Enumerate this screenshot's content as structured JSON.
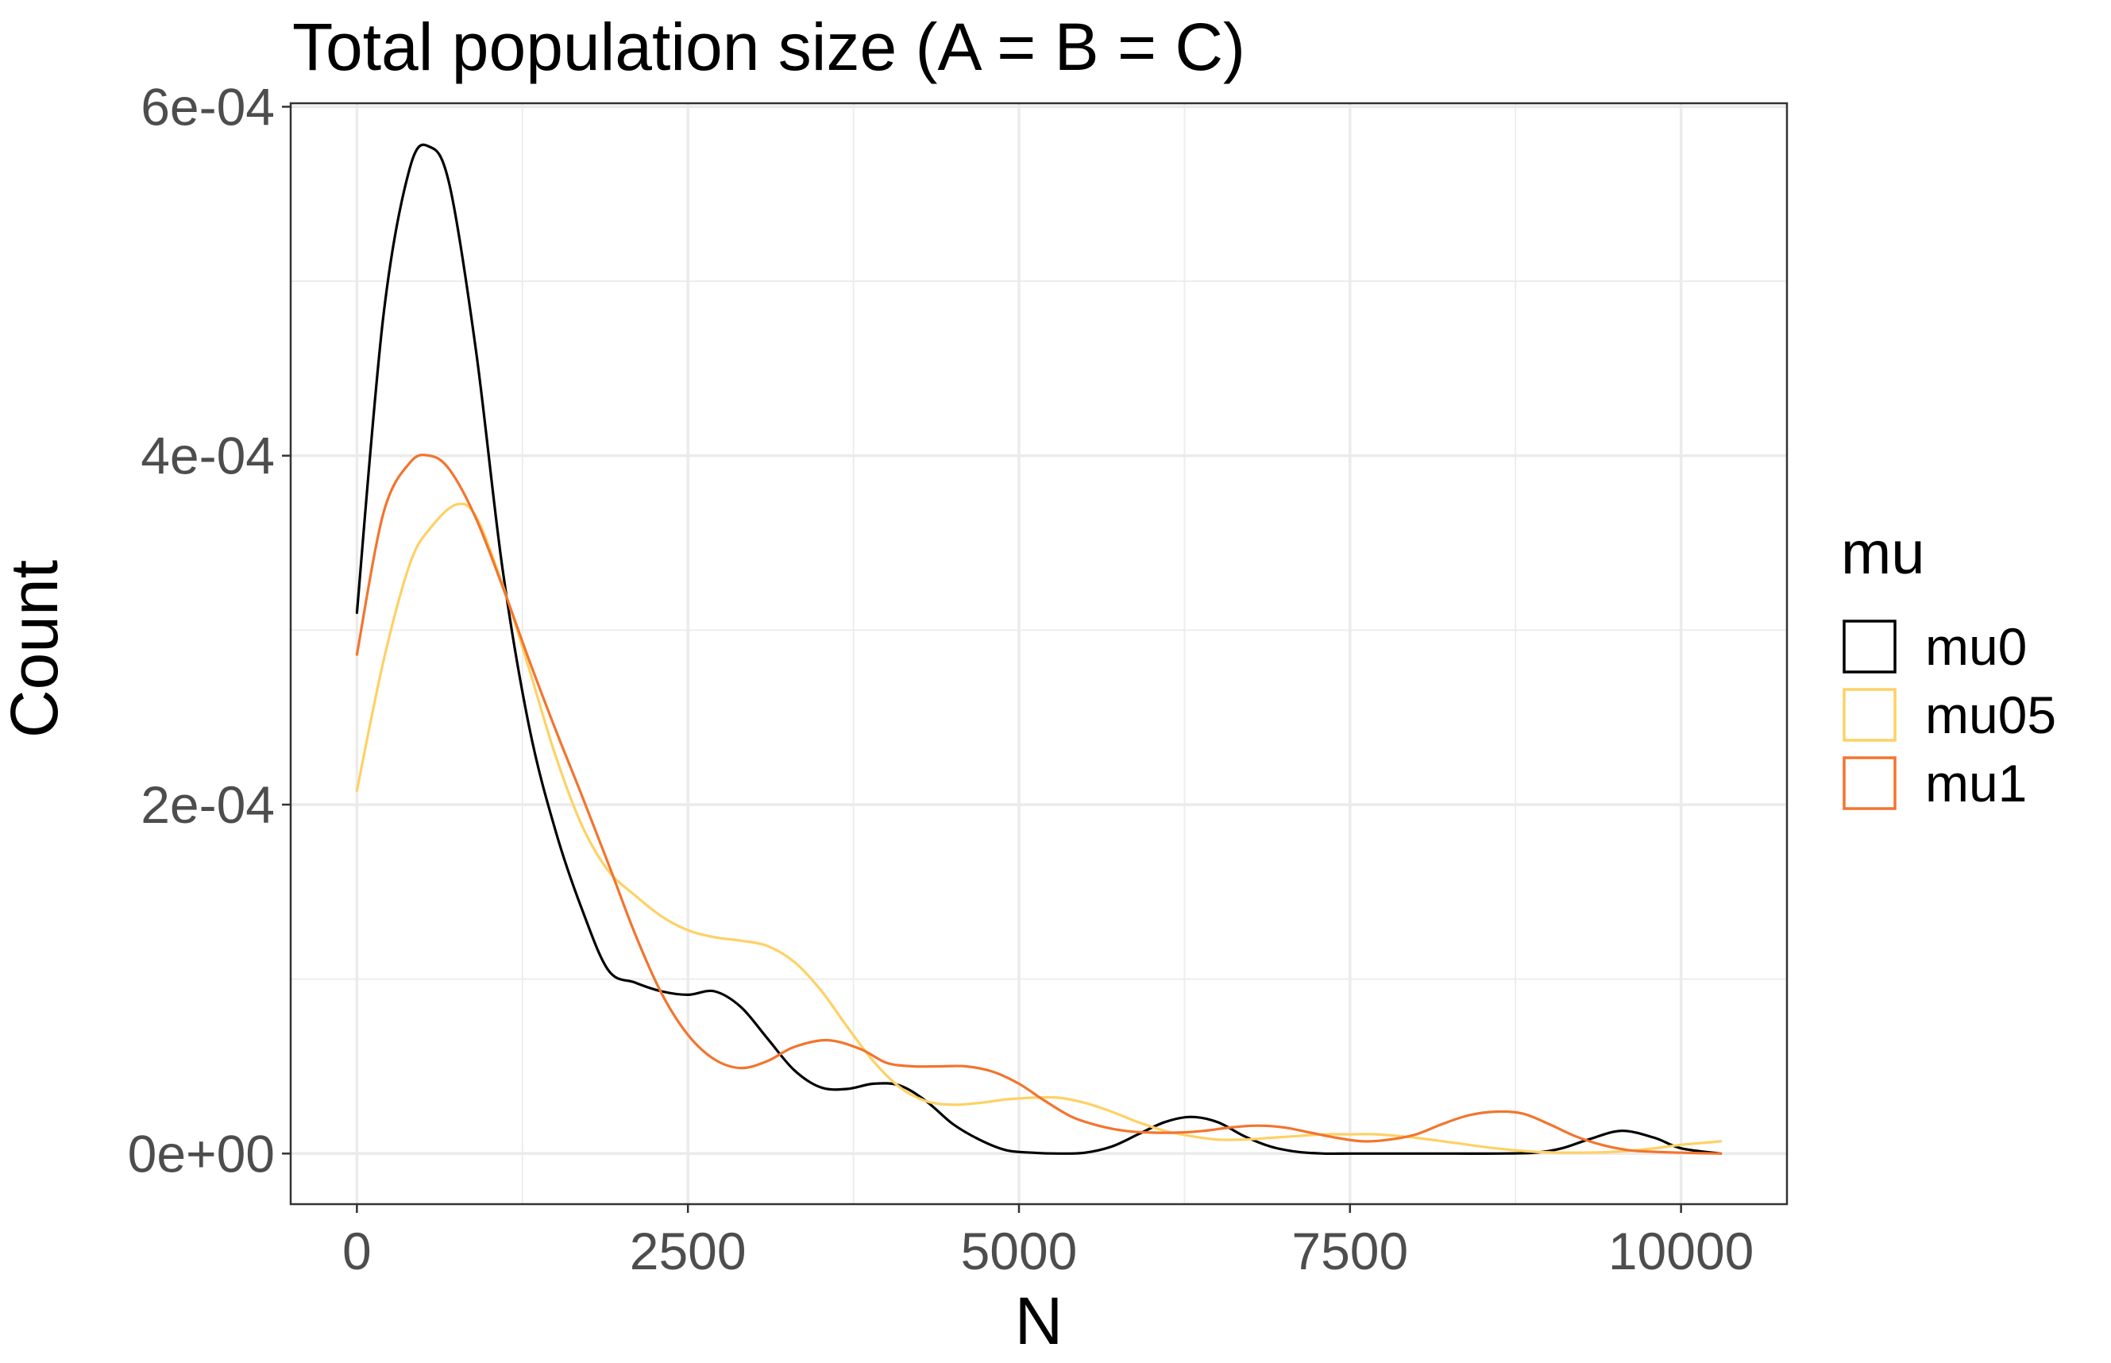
{
  "chart_data": {
    "type": "line",
    "title": "Total population size (A = B = C)",
    "xlabel": "N",
    "ylabel": "Count",
    "xlim": [
      -500,
      10800
    ],
    "ylim": [
      -2.9e-05,
      0.000602
    ],
    "x_ticks": [
      0,
      2500,
      5000,
      7500,
      10000
    ],
    "x_tick_labels": [
      "0",
      "2500",
      "5000",
      "7500",
      "10000"
    ],
    "x_minor_ticks": [
      1250,
      3750,
      6250,
      8750
    ],
    "y_ticks": [
      0,
      0.0002,
      0.0004,
      0.0006
    ],
    "y_tick_labels": [
      "0e+00",
      "2e-04",
      "4e-04",
      "6e-04"
    ],
    "y_minor_ticks": [
      0.0001,
      0.0003,
      0.0005
    ],
    "grid": true,
    "legend": {
      "title": "mu",
      "position": "right"
    },
    "series": [
      {
        "name": "mu0",
        "color": "#000000",
        "x": [
          0,
          200,
          400,
          550,
          700,
          900,
          1100,
          1300,
          1500,
          1700,
          1900,
          2100,
          2300,
          2500,
          2700,
          2900,
          3100,
          3300,
          3500,
          3700,
          3900,
          4100,
          4300,
          4500,
          4700,
          4900,
          5100,
          5300,
          5500,
          5700,
          5900,
          6100,
          6300,
          6500,
          6700,
          6900,
          7100,
          7300,
          7500,
          7700,
          8000,
          8300,
          8600,
          8900,
          9100,
          9300,
          9550,
          9800,
          10000,
          10300
        ],
        "y": [
          0.00031,
          0.00048,
          0.000565,
          0.000577,
          0.000555,
          0.00046,
          0.000335,
          0.000245,
          0.000185,
          0.00014,
          0.000105,
          9.8e-05,
          9.3e-05,
          9.1e-05,
          9.3e-05,
          8.4e-05,
          6.6e-05,
          4.8e-05,
          3.8e-05,
          3.7e-05,
          4e-05,
          3.9e-05,
          3e-05,
          1.7e-05,
          8e-06,
          2e-06,
          5e-07,
          0.0,
          5e-07,
          4e-06,
          1.1e-05,
          1.8e-05,
          2.1e-05,
          1.8e-05,
          1e-05,
          4e-06,
          1e-06,
          0.0,
          0.0,
          0.0,
          0.0,
          0.0,
          0.0,
          5e-07,
          3e-06,
          8e-06,
          1.3e-05,
          9e-06,
          3e-06,
          0.0
        ]
      },
      {
        "name": "mu05",
        "color": "#fed165",
        "x": [
          0,
          200,
          400,
          550,
          750,
          900,
          1100,
          1300,
          1500,
          1700,
          1900,
          2100,
          2300,
          2500,
          2700,
          2900,
          3100,
          3300,
          3500,
          3700,
          3900,
          4100,
          4300,
          4500,
          4700,
          4900,
          5100,
          5300,
          5500,
          5700,
          5900,
          6100,
          6300,
          6500,
          6700,
          6900,
          7100,
          7300,
          7500,
          7700,
          8000,
          8300,
          8600,
          8900,
          9200,
          9500,
          9800,
          10000,
          10300
        ],
        "y": [
          0.000208,
          0.000282,
          0.000338,
          0.000358,
          0.000372,
          0.000365,
          0.000326,
          0.000278,
          0.000228,
          0.000188,
          0.000162,
          0.000148,
          0.000136,
          0.000128,
          0.000124,
          0.000122,
          0.000119,
          0.00011,
          9.4e-05,
          7.3e-05,
          5.3e-05,
          3.8e-05,
          3e-05,
          2.8e-05,
          2.9e-05,
          3.1e-05,
          3.2e-05,
          3.2e-05,
          2.9e-05,
          2.4e-05,
          1.8e-05,
          1.3e-05,
          1e-05,
          8e-06,
          8e-06,
          9e-06,
          1e-05,
          1.1e-05,
          1.1e-05,
          1.1e-05,
          9e-06,
          6e-06,
          3e-06,
          1e-06,
          5e-07,
          1e-06,
          3e-06,
          5e-06,
          7e-06
        ]
      },
      {
        "name": "mu1",
        "color": "#f3742e",
        "x": [
          0,
          200,
          400,
          550,
          700,
          900,
          1100,
          1300,
          1500,
          1700,
          1900,
          2100,
          2300,
          2500,
          2700,
          2900,
          3100,
          3300,
          3550,
          3800,
          4000,
          4200,
          4400,
          4600,
          4800,
          5000,
          5200,
          5400,
          5600,
          5800,
          6000,
          6200,
          6400,
          6600,
          6800,
          7000,
          7200,
          7400,
          7600,
          7800,
          8000,
          8200,
          8400,
          8600,
          8800,
          9000,
          9200,
          9400,
          9600,
          9800,
          10000,
          10300
        ],
        "y": [
          0.000286,
          0.000367,
          0.000396,
          0.0004,
          0.000392,
          0.000364,
          0.000325,
          0.000283,
          0.000243,
          0.000205,
          0.000166,
          0.000126,
          9.2e-05,
          6.8e-05,
          5.4e-05,
          4.9e-05,
          5.3e-05,
          6.1e-05,
          6.5e-05,
          6e-05,
          5.2e-05,
          5e-05,
          5e-05,
          5e-05,
          4.7e-05,
          4e-05,
          3e-05,
          2.1e-05,
          1.6e-05,
          1.3e-05,
          1.2e-05,
          1.2e-05,
          1.3e-05,
          1.5e-05,
          1.6e-05,
          1.5e-05,
          1.2e-05,
          9e-06,
          7e-06,
          8e-06,
          1.1e-05,
          1.7e-05,
          2.2e-05,
          2.4e-05,
          2.3e-05,
          1.7e-05,
          1e-05,
          5e-06,
          2e-06,
          1e-06,
          5e-07,
          0.0
        ]
      }
    ]
  }
}
